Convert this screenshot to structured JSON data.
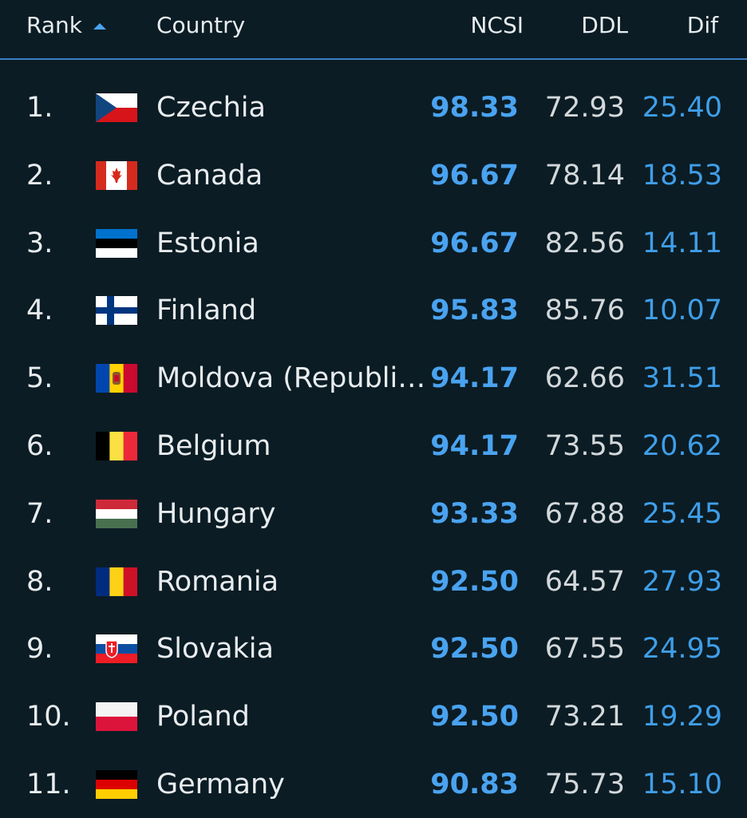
{
  "header": {
    "columns": [
      "Rank",
      "Country",
      "NCSI",
      "DDL",
      "Dif"
    ]
  },
  "table": {
    "rows": [
      [
        "1.",
        "Czechia",
        "98.33",
        "72.93",
        "25.40"
      ],
      [
        "2.",
        "Canada",
        "96.67",
        "78.14",
        "18.53"
      ],
      [
        "3.",
        "Estonia",
        "96.67",
        "82.56",
        "14.11"
      ],
      [
        "4.",
        "Finland",
        "95.83",
        "85.76",
        "10.07"
      ],
      [
        "5.",
        "Moldova (Republi…",
        "94.17",
        "62.66",
        "31.51"
      ],
      [
        "6.",
        "Belgium",
        "94.17",
        "73.55",
        "20.62"
      ],
      [
        "7.",
        "Hungary",
        "93.33",
        "67.88",
        "25.45"
      ],
      [
        "8.",
        "Romania",
        "92.50",
        "64.57",
        "27.93"
      ],
      [
        "9.",
        "Slovakia",
        "92.50",
        "67.55",
        "24.95"
      ],
      [
        "10.",
        "Poland",
        "92.50",
        "73.21",
        "19.29"
      ],
      [
        "11.",
        "Germany",
        "90.83",
        "75.73",
        "15.10"
      ]
    ]
  }
}
